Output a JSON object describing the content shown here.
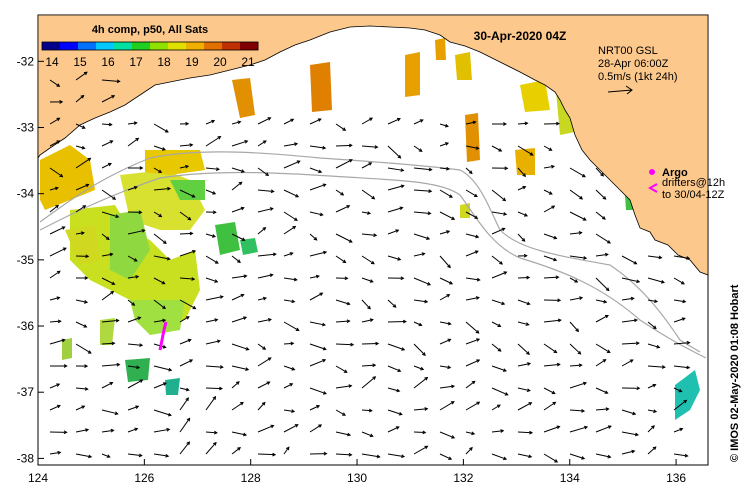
{
  "map": {
    "date_title": "30-Apr-2020 04Z",
    "side_credit": "© IMOS 02-May-2020 01:08 Hobart",
    "x_axis": {
      "ticks": [
        "124",
        "126",
        "128",
        "130",
        "132",
        "134",
        "136"
      ]
    },
    "y_axis": {
      "ticks": [
        "-32",
        "-33",
        "-34",
        "-35",
        "-36",
        "-37",
        "-38"
      ]
    },
    "extent": {
      "lon": [
        124,
        136.6
      ],
      "lat": [
        -38.1,
        -31.3
      ]
    }
  },
  "colorbar": {
    "title": "4h comp, p50, All Sats",
    "ticks": [
      "14",
      "15",
      "16",
      "17",
      "18",
      "19",
      "20",
      "21"
    ],
    "colors": [
      "#00008c",
      "#0000ff",
      "#0070ff",
      "#00c8ff",
      "#00e0a0",
      "#20d020",
      "#90e000",
      "#e0e000",
      "#f0b000",
      "#e07000",
      "#c03000",
      "#800000"
    ]
  },
  "current_legend": {
    "line1": "NRT00 GSL",
    "line2": "28-Apr 06:00Z",
    "line3": "0.5m/s (1kt 24h)"
  },
  "argo_legend": {
    "label": "Argo",
    "line2": "drifters@12h",
    "line3": "to 30/04-12Z",
    "colors": {
      "argo": "#ff00ff",
      "drifter": "#ff00ff",
      "land": "#fcc88c"
    }
  }
}
